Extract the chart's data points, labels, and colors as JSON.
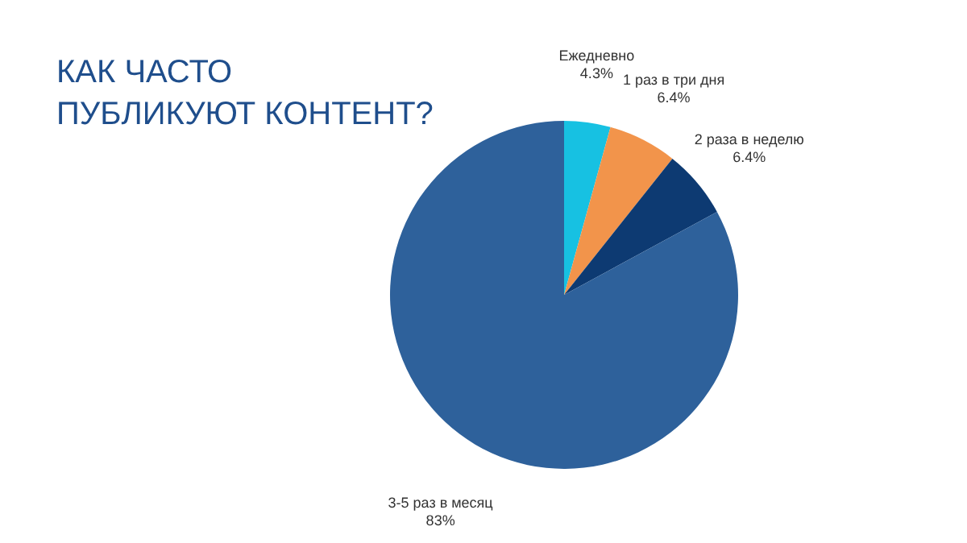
{
  "chart_data": {
    "type": "pie",
    "title": "КАК ЧАСТО\nПУБЛИКУЮТ КОНТЕНТ?",
    "categories": [
      "Ежедневно",
      "1 раз в три дня",
      "2 раза в неделю",
      "3-5 раз в месяц"
    ],
    "values": [
      4.3,
      6.4,
      6.4,
      83
    ],
    "colors": [
      "#17c1e2",
      "#f2944b",
      "#0d3a72",
      "#2e619b"
    ],
    "value_labels": [
      "4.3%",
      "6.4%",
      "6.4%",
      "83%"
    ]
  }
}
